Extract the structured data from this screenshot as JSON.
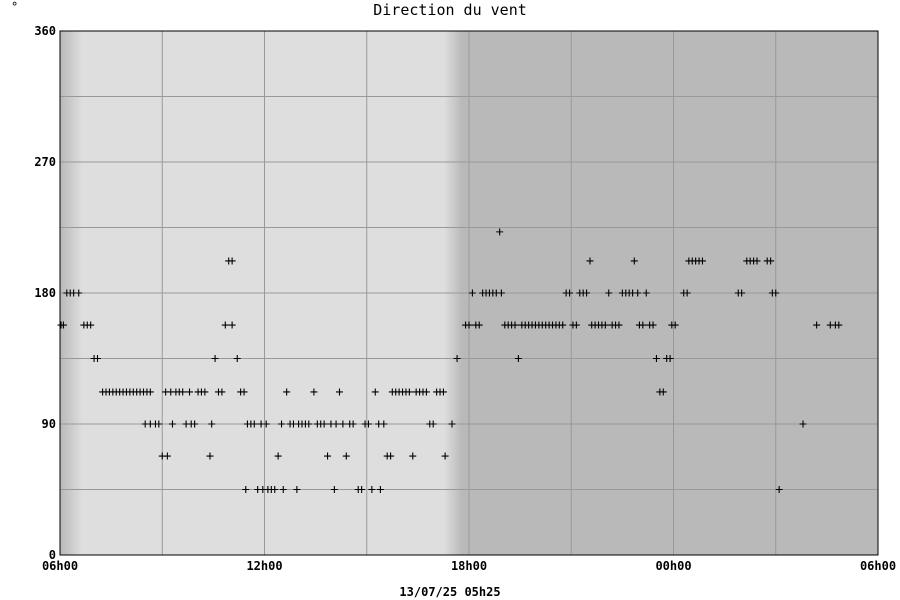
{
  "chart_data": {
    "type": "scatter",
    "title": "Direction du vent",
    "unit": "°",
    "footer": "13/07/25 05h25",
    "xlabel": "",
    "ylabel": "",
    "xlim_hours": [
      0,
      24
    ],
    "ylim": [
      0,
      360
    ],
    "x_ticks": [
      {
        "h": 0,
        "label": "06h00"
      },
      {
        "h": 6,
        "label": "12h00"
      },
      {
        "h": 12,
        "label": "18h00"
      },
      {
        "h": 18,
        "label": "00h00"
      },
      {
        "h": 24,
        "label": "06h00"
      }
    ],
    "y_ticks": [
      {
        "v": 0,
        "label": "0"
      },
      {
        "v": 90,
        "label": "90"
      },
      {
        "v": 180,
        "label": "180"
      },
      {
        "v": 270,
        "label": "270"
      },
      {
        "v": 360,
        "label": "360"
      }
    ],
    "y_grid_minor": [
      45,
      135,
      225,
      315
    ],
    "x_grid_minor_hours": [
      3,
      9,
      15,
      21
    ],
    "grid": true,
    "background": {
      "plot": "#b9b9b9",
      "daylight": "#dedede",
      "daylight_start_hours": 1.3,
      "daylight_end_hours": 11.8
    },
    "marker": "+",
    "marker_color": "#000000",
    "series": [
      {
        "points": [
          [
            0.03,
            158
          ],
          [
            0.1,
            158
          ],
          [
            0.2,
            180
          ],
          [
            0.3,
            180
          ],
          [
            0.4,
            180
          ],
          [
            0.55,
            180
          ],
          [
            0.7,
            158
          ],
          [
            0.8,
            158
          ],
          [
            0.9,
            158
          ],
          [
            1.0,
            135
          ],
          [
            1.1,
            135
          ],
          [
            1.25,
            112
          ],
          [
            1.35,
            112
          ],
          [
            1.45,
            112
          ],
          [
            1.55,
            112
          ],
          [
            1.65,
            112
          ],
          [
            1.75,
            112
          ],
          [
            1.85,
            112
          ],
          [
            1.95,
            112
          ],
          [
            2.05,
            112
          ],
          [
            2.15,
            112
          ],
          [
            2.25,
            112
          ],
          [
            2.35,
            112
          ],
          [
            2.45,
            112
          ],
          [
            2.55,
            112
          ],
          [
            2.5,
            90
          ],
          [
            2.65,
            112
          ],
          [
            2.65,
            90
          ],
          [
            2.8,
            90
          ],
          [
            2.9,
            90
          ],
          [
            3.0,
            68
          ],
          [
            3.1,
            112
          ],
          [
            3.15,
            68
          ],
          [
            3.25,
            112
          ],
          [
            3.3,
            90
          ],
          [
            3.4,
            112
          ],
          [
            3.5,
            112
          ],
          [
            3.6,
            112
          ],
          [
            3.7,
            90
          ],
          [
            3.8,
            112
          ],
          [
            3.85,
            90
          ],
          [
            3.95,
            90
          ],
          [
            4.05,
            112
          ],
          [
            4.15,
            112
          ],
          [
            4.25,
            112
          ],
          [
            4.4,
            68
          ],
          [
            4.45,
            90
          ],
          [
            4.55,
            135
          ],
          [
            4.65,
            112
          ],
          [
            4.75,
            112
          ],
          [
            4.85,
            158
          ],
          [
            4.95,
            202
          ],
          [
            5.05,
            202
          ],
          [
            5.05,
            158
          ],
          [
            5.2,
            135
          ],
          [
            5.3,
            112
          ],
          [
            5.4,
            112
          ],
          [
            5.45,
            45
          ],
          [
            5.5,
            90
          ],
          [
            5.6,
            90
          ],
          [
            5.7,
            90
          ],
          [
            5.8,
            45
          ],
          [
            5.9,
            90
          ],
          [
            5.95,
            45
          ],
          [
            6.05,
            90
          ],
          [
            6.1,
            45
          ],
          [
            6.2,
            45
          ],
          [
            6.3,
            45
          ],
          [
            6.4,
            68
          ],
          [
            6.5,
            90
          ],
          [
            6.55,
            45
          ],
          [
            6.65,
            112
          ],
          [
            6.75,
            90
          ],
          [
            6.85,
            90
          ],
          [
            6.95,
            45
          ],
          [
            7.0,
            90
          ],
          [
            7.1,
            90
          ],
          [
            7.2,
            90
          ],
          [
            7.3,
            90
          ],
          [
            7.45,
            112
          ],
          [
            7.55,
            90
          ],
          [
            7.65,
            90
          ],
          [
            7.75,
            90
          ],
          [
            7.85,
            68
          ],
          [
            7.95,
            90
          ],
          [
            8.05,
            45
          ],
          [
            8.1,
            90
          ],
          [
            8.2,
            112
          ],
          [
            8.3,
            90
          ],
          [
            8.4,
            68
          ],
          [
            8.5,
            90
          ],
          [
            8.6,
            90
          ],
          [
            8.75,
            45
          ],
          [
            8.85,
            45
          ],
          [
            8.95,
            90
          ],
          [
            9.05,
            90
          ],
          [
            9.15,
            45
          ],
          [
            9.25,
            112
          ],
          [
            9.35,
            90
          ],
          [
            9.4,
            45
          ],
          [
            9.5,
            90
          ],
          [
            9.6,
            68
          ],
          [
            9.7,
            68
          ],
          [
            9.75,
            112
          ],
          [
            9.85,
            112
          ],
          [
            9.95,
            112
          ],
          [
            10.05,
            112
          ],
          [
            10.15,
            112
          ],
          [
            10.25,
            112
          ],
          [
            10.35,
            68
          ],
          [
            10.45,
            112
          ],
          [
            10.55,
            112
          ],
          [
            10.65,
            112
          ],
          [
            10.75,
            112
          ],
          [
            10.85,
            90
          ],
          [
            10.95,
            90
          ],
          [
            11.05,
            112
          ],
          [
            11.15,
            112
          ],
          [
            11.25,
            112
          ],
          [
            11.3,
            68
          ],
          [
            11.5,
            90
          ],
          [
            11.65,
            135
          ],
          [
            11.9,
            158
          ],
          [
            12.0,
            158
          ],
          [
            12.1,
            180
          ],
          [
            12.2,
            158
          ],
          [
            12.3,
            158
          ],
          [
            12.4,
            180
          ],
          [
            12.5,
            180
          ],
          [
            12.6,
            180
          ],
          [
            12.7,
            180
          ],
          [
            12.8,
            180
          ],
          [
            12.9,
            222
          ],
          [
            12.95,
            180
          ],
          [
            13.05,
            158
          ],
          [
            13.15,
            158
          ],
          [
            13.25,
            158
          ],
          [
            13.35,
            158
          ],
          [
            13.45,
            135
          ],
          [
            13.55,
            158
          ],
          [
            13.65,
            158
          ],
          [
            13.75,
            158
          ],
          [
            13.85,
            158
          ],
          [
            13.95,
            158
          ],
          [
            14.05,
            158
          ],
          [
            14.15,
            158
          ],
          [
            14.25,
            158
          ],
          [
            14.35,
            158
          ],
          [
            14.45,
            158
          ],
          [
            14.55,
            158
          ],
          [
            14.65,
            158
          ],
          [
            14.75,
            158
          ],
          [
            14.85,
            180
          ],
          [
            14.95,
            180
          ],
          [
            15.05,
            158
          ],
          [
            15.15,
            158
          ],
          [
            15.25,
            180
          ],
          [
            15.35,
            180
          ],
          [
            15.45,
            180
          ],
          [
            15.55,
            202
          ],
          [
            15.6,
            158
          ],
          [
            15.7,
            158
          ],
          [
            15.8,
            158
          ],
          [
            15.9,
            158
          ],
          [
            16.0,
            158
          ],
          [
            16.1,
            180
          ],
          [
            16.2,
            158
          ],
          [
            16.3,
            158
          ],
          [
            16.4,
            158
          ],
          [
            16.5,
            180
          ],
          [
            16.6,
            180
          ],
          [
            16.7,
            180
          ],
          [
            16.8,
            180
          ],
          [
            16.85,
            202
          ],
          [
            16.95,
            180
          ],
          [
            17.0,
            158
          ],
          [
            17.1,
            158
          ],
          [
            17.2,
            180
          ],
          [
            17.3,
            158
          ],
          [
            17.4,
            158
          ],
          [
            17.5,
            135
          ],
          [
            17.6,
            112
          ],
          [
            17.7,
            112
          ],
          [
            17.8,
            135
          ],
          [
            17.9,
            135
          ],
          [
            17.95,
            158
          ],
          [
            18.05,
            158
          ],
          [
            18.3,
            180
          ],
          [
            18.4,
            180
          ],
          [
            18.45,
            202
          ],
          [
            18.55,
            202
          ],
          [
            18.65,
            202
          ],
          [
            18.75,
            202
          ],
          [
            18.85,
            202
          ],
          [
            19.9,
            180
          ],
          [
            20.0,
            180
          ],
          [
            20.15,
            202
          ],
          [
            20.25,
            202
          ],
          [
            20.35,
            202
          ],
          [
            20.45,
            202
          ],
          [
            20.75,
            202
          ],
          [
            20.85,
            202
          ],
          [
            20.9,
            180
          ],
          [
            21.0,
            180
          ],
          [
            21.1,
            45
          ],
          [
            21.8,
            90
          ],
          [
            22.2,
            158
          ],
          [
            22.6,
            158
          ],
          [
            22.75,
            158
          ],
          [
            22.85,
            158
          ]
        ]
      }
    ]
  }
}
